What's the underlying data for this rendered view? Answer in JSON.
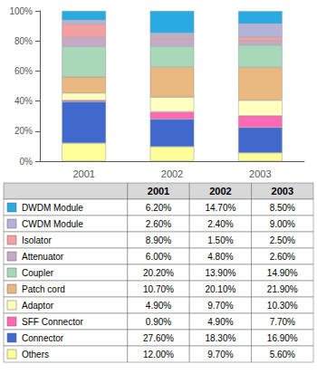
{
  "chart_data": {
    "type": "bar",
    "stacked": true,
    "grid": false,
    "legend": "bottom",
    "categories": [
      "2001",
      "2002",
      "2003"
    ],
    "series": [
      {
        "name": "DWDM Module",
        "color": "#29ABE2",
        "values": [
          6.2,
          14.7,
          8.5
        ],
        "value_labels": [
          "6.20%",
          "14.70%",
          "8.50%"
        ]
      },
      {
        "name": "CWDM Module",
        "color": "#B3B3D9",
        "values": [
          2.6,
          2.4,
          9.0
        ],
        "value_labels": [
          "2.60%",
          "2.40%",
          "9.00%"
        ]
      },
      {
        "name": "Isolator",
        "color": "#F4A0A0",
        "values": [
          8.9,
          1.5,
          2.5
        ],
        "value_labels": [
          "8.90%",
          "1.50%",
          "2.50%"
        ]
      },
      {
        "name": "Attenuator",
        "color": "#C8A8C8",
        "values": [
          6.0,
          4.8,
          2.6
        ],
        "value_labels": [
          "6.00%",
          "4.80%",
          "2.60%"
        ]
      },
      {
        "name": "Coupler",
        "color": "#A8D8B8",
        "values": [
          20.2,
          13.9,
          14.9
        ],
        "value_labels": [
          "20.20%",
          "13.90%",
          "14.90%"
        ]
      },
      {
        "name": "Patch cord",
        "color": "#E8B880",
        "values": [
          10.7,
          20.1,
          21.9
        ],
        "value_labels": [
          "10.70%",
          "20.10%",
          "21.90%"
        ]
      },
      {
        "name": "Adaptor",
        "color": "#FFFFC0",
        "values": [
          4.9,
          9.7,
          10.3
        ],
        "value_labels": [
          "4.90%",
          "9.70%",
          "10.30%"
        ]
      },
      {
        "name": "SFF Connector",
        "color": "#FF69B4",
        "values": [
          0.9,
          4.9,
          7.7
        ],
        "value_labels": [
          "0.90%",
          "4.90%",
          "7.70%"
        ]
      },
      {
        "name": "Connector",
        "color": "#4169CD",
        "values": [
          27.6,
          18.3,
          16.9
        ],
        "value_labels": [
          "27.60%",
          "18.30%",
          "16.90%"
        ]
      },
      {
        "name": "Others",
        "color": "#FFFF99",
        "values": [
          12.0,
          9.7,
          5.6
        ],
        "value_labels": [
          "12.00%",
          "9.70%",
          "5.60%"
        ]
      }
    ],
    "ylim": [
      0,
      100
    ],
    "yticks": [
      {
        "value": 0,
        "label": "0%"
      },
      {
        "value": 20,
        "label": "20%"
      },
      {
        "value": 40,
        "label": "40%"
      },
      {
        "value": 60,
        "label": "60%"
      },
      {
        "value": 80,
        "label": "80%"
      },
      {
        "value": 100,
        "label": "100%"
      }
    ]
  }
}
